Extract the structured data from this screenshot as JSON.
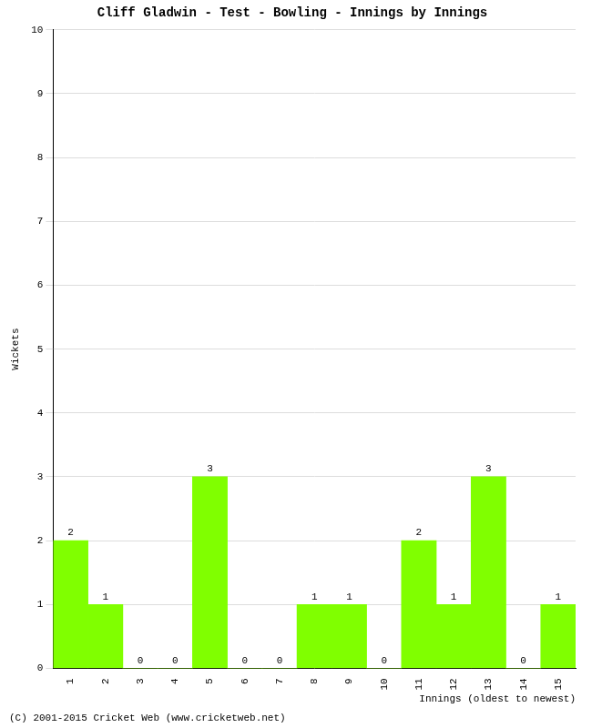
{
  "chart_data": {
    "type": "bar",
    "title": "Cliff Gladwin - Test - Bowling - Innings by Innings",
    "x_label": "Innings (oldest to newest)",
    "y_label": "Wickets",
    "footer": "(C) 2001-2015 Cricket Web (www.cricketweb.net)",
    "categories": [
      "1",
      "2",
      "3",
      "4",
      "5",
      "6",
      "7",
      "8",
      "9",
      "10",
      "11",
      "12",
      "13",
      "14",
      "15"
    ],
    "values": [
      2,
      1,
      0,
      0,
      3,
      0,
      0,
      1,
      1,
      0,
      2,
      1,
      3,
      0,
      1
    ],
    "color": "#80ff00",
    "ylim": [
      0,
      10
    ],
    "yticks": [
      0,
      1,
      2,
      3,
      4,
      5,
      6,
      7,
      8,
      9,
      10
    ],
    "grid": true,
    "data_labels": true
  }
}
